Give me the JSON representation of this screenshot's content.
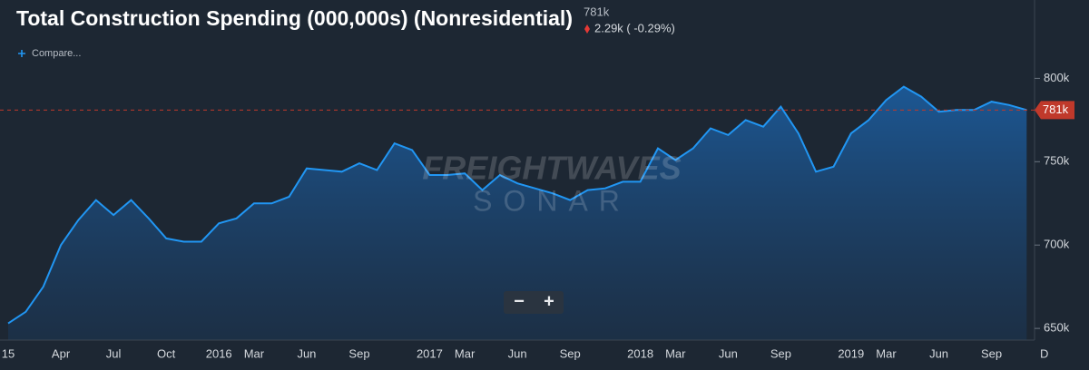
{
  "chart_data": {
    "type": "area",
    "title": "Total Construction Spending (000,000s) (Nonresidential)",
    "current_value": "781k",
    "change": "2.29k ( -0.29%)",
    "compare_label": "Compare...",
    "watermark": [
      "FREIGHTWAVES",
      "SONAR"
    ],
    "zoom_controls": [
      "−",
      "+"
    ],
    "last_value_label": "781k",
    "categories": [
      "15",
      null,
      null,
      "Apr",
      null,
      null,
      "Jul",
      null,
      null,
      "Oct",
      null,
      null,
      "2016",
      null,
      "Mar",
      null,
      null,
      "Jun",
      null,
      null,
      "Sep",
      null,
      null,
      null,
      "2017",
      null,
      "Mar",
      null,
      null,
      "Jun",
      null,
      null,
      "Sep",
      null,
      null,
      null,
      "2018",
      null,
      "Mar",
      null,
      null,
      "Jun",
      null,
      null,
      "Sep",
      null,
      null,
      null,
      "2019",
      null,
      "Mar",
      null,
      null,
      "Jun",
      null,
      null,
      "Sep",
      null,
      null,
      "D"
    ],
    "series": [
      {
        "color": "#2196f3",
        "values": [
          653000,
          660000,
          675000,
          700000,
          715000,
          727000,
          718000,
          727000,
          716000,
          704000,
          702000,
          702000,
          713000,
          716000,
          725000,
          725000,
          729000,
          746000,
          745000,
          744000,
          749000,
          745000,
          761000,
          757000,
          742000,
          742000,
          743000,
          733000,
          742000,
          737000,
          734000,
          731000,
          727000,
          733000,
          734000,
          738000,
          738000,
          758000,
          751000,
          758000,
          770000,
          766000,
          775000,
          771000,
          783000,
          767000,
          744000,
          747000,
          767000,
          775000,
          787000,
          795000,
          789000,
          780000,
          781000,
          781000,
          786000,
          784000,
          781000,
          null
        ]
      }
    ],
    "ylim": [
      643000,
      847000
    ],
    "yticks": [
      {
        "value": 650000,
        "label": "650k"
      },
      {
        "value": 700000,
        "label": "700k"
      },
      {
        "value": 750000,
        "label": "750k"
      },
      {
        "value": 800000,
        "label": "800k"
      }
    ],
    "grid": false
  }
}
